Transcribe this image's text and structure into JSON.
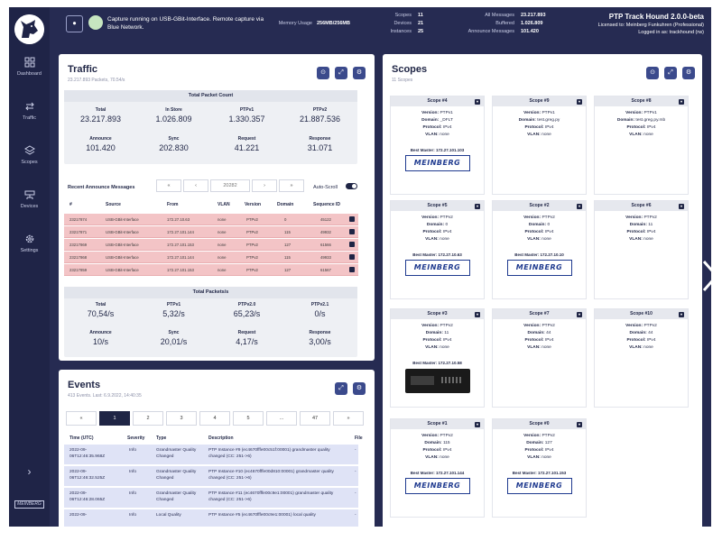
{
  "topbar": {
    "capture_button_icon": "record-icon",
    "capture_text": "Capture running on USB-GBit-Interface. Remote capture via Blue Network.",
    "memory_label": "Memory Usage",
    "memory_value": "256MB/256MB",
    "scopes_label": "Scopes",
    "scopes_value": "11",
    "devices_label": "Devices",
    "devices_value": "21",
    "instances_label": "Instances",
    "instances_value": "25",
    "all_messages_label": "All Messages",
    "all_messages_value": "23.217.893",
    "buffered_label": "Buffered",
    "buffered_value": "1.026.809",
    "announce_label": "Announce Messages",
    "announce_value": "101.420",
    "product_name": "PTP Track Hound 2.0.0-beta",
    "license": "Licensed to: Meinberg Funkuhren (Professional)",
    "login": "Logged in as: trackhound (rw)"
  },
  "sidebar": {
    "items": [
      {
        "label": "Dashboard",
        "icon": "dashboard-icon"
      },
      {
        "label": "Traffic",
        "icon": "traffic-icon"
      },
      {
        "label": "Scopes",
        "icon": "layers-icon"
      },
      {
        "label": "Devices",
        "icon": "devices-icon"
      },
      {
        "label": "Settings",
        "icon": "gear-icon"
      }
    ],
    "collapse": "›",
    "brand": "MEINBERG"
  },
  "traffic": {
    "title": "Traffic",
    "subtitle": "23.217.893 Packets, 70.54/s",
    "total_count": {
      "header": "Total Packet Count",
      "row1": [
        {
          "label": "Total",
          "value": "23.217.893"
        },
        {
          "label": "In Store",
          "value": "1.026.809"
        },
        {
          "label": "PTPv1",
          "value": "1.330.357"
        },
        {
          "label": "PTPv2",
          "value": "21.887.536"
        }
      ],
      "row2": [
        {
          "label": "Announce",
          "value": "101.420"
        },
        {
          "label": "Sync",
          "value": "202.830"
        },
        {
          "label": "Request",
          "value": "41.221"
        },
        {
          "label": "Response",
          "value": "31.071"
        }
      ]
    },
    "recent": {
      "label": "Recent Announce Messages",
      "pager_first": "«",
      "pager_prev": "‹",
      "pager_value": "20282",
      "pager_next": "›",
      "pager_last": "»",
      "autoscroll_label": "Auto-Scroll",
      "columns": [
        "#",
        "Source",
        "From",
        "VLAN",
        "Version",
        "Domain",
        "Sequence ID"
      ],
      "rows": [
        [
          "23217874",
          "USB-GBit-Interface",
          "172.27.10.63",
          "none",
          "PTPv2",
          "0",
          "45122"
        ],
        [
          "23217871",
          "USB-GBit-Interface",
          "172.27.101.144",
          "none",
          "PTPv2",
          "115",
          "49932"
        ],
        [
          "23217869",
          "USB-GBit-Interface",
          "172.27.101.153",
          "none",
          "PTPv2",
          "127",
          "61566"
        ],
        [
          "23217868",
          "USB-GBit-Interface",
          "172.27.101.144",
          "none",
          "PTPv2",
          "115",
          "49933"
        ],
        [
          "23217859",
          "USB-GBit-Interface",
          "172.27.101.153",
          "none",
          "PTPv2",
          "127",
          "61567"
        ]
      ]
    },
    "rate": {
      "header": "Total Packets/s",
      "row1": [
        {
          "label": "Total",
          "value": "70,54/s"
        },
        {
          "label": "PTPv1",
          "value": "5,32/s"
        },
        {
          "label": "PTPv2.0",
          "value": "65,23/s"
        },
        {
          "label": "PTPv2.1",
          "value": "0/s"
        }
      ],
      "row2": [
        {
          "label": "Announce",
          "value": "10/s"
        },
        {
          "label": "Sync",
          "value": "20,01/s"
        },
        {
          "label": "Request",
          "value": "4,17/s"
        },
        {
          "label": "Response",
          "value": "3,00/s"
        }
      ]
    }
  },
  "events": {
    "title": "Events",
    "subtitle": "413 Events. Last: 6.9.2022, 14:40:35",
    "pages": [
      "«",
      "1",
      "2",
      "3",
      "4",
      "5",
      "...",
      "47",
      "»"
    ],
    "active_page_index": 1,
    "columns": [
      "Time (UTC)",
      "Severity",
      "Type",
      "Description",
      "File"
    ],
    "rows": [
      {
        "time": "2022-09-06T12:46:35.968Z",
        "severity": "Info",
        "type": "Grandmaster Quality Changed",
        "desc": "PTP Instance #9 (ec4670fffe00c51f:00001) grandmaster quality changed (CC: 251->6)",
        "file": "-"
      },
      {
        "time": "2022-09-06T12:46:32.525Z",
        "severity": "Info",
        "type": "Grandmaster Quality Changed",
        "desc": "PTP Instance #10 (ec4670fffe00d810:00001) grandmaster quality changed (CC: 251->6)",
        "file": "-"
      },
      {
        "time": "2022-09-06T12:46:28.065Z",
        "severity": "Info",
        "type": "Grandmaster Quality Changed",
        "desc": "PTP Instance #11 (ec4670fffe00c9e1:00001) grandmaster quality changed (CC: 251->6)",
        "file": "-"
      },
      {
        "time": "2022-09-",
        "severity": "Info",
        "type": "Local Quality",
        "desc": "PTP Instance #5 (ec4670fffe00c9e1:00001) local quality",
        "file": "-"
      }
    ]
  },
  "scopes": {
    "title": "Scopes",
    "subtitle": "11 Scopes",
    "labels": {
      "version": "Version:",
      "domain": "Domain:",
      "protocol": "Protocol:",
      "vlan": "VLAN:",
      "best_master": "Best Master:"
    },
    "cards": [
      {
        "name": "Scope #4",
        "version": "PTPv1",
        "domain": "_DFLT",
        "protocol": "IPv4",
        "vlan": "none",
        "best_master": "172.27.101.103",
        "image": "MEINBERG"
      },
      {
        "name": "Scope #9",
        "version": "PTPv1",
        "domain": "test.greg.py",
        "protocol": "IPv4",
        "vlan": "none",
        "best_master": "",
        "image": ""
      },
      {
        "name": "Scope #8",
        "version": "PTPv1",
        "domain": "test.greg.py.mb",
        "protocol": "IPv4",
        "vlan": "none",
        "best_master": "",
        "image": ""
      },
      {
        "name": "Scope #5",
        "version": "PTPv2",
        "domain": "0",
        "protocol": "IPv4",
        "vlan": "none",
        "best_master": "172.27.10.63",
        "image": "MEINBERG"
      },
      {
        "name": "Scope #2",
        "version": "PTPv2",
        "domain": "0",
        "protocol": "IPv4",
        "vlan": "none",
        "best_master": "172.27.10.10",
        "image": "MEINBERG"
      },
      {
        "name": "Scope #6",
        "version": "PTPv2",
        "domain": "11",
        "protocol": "IPv4",
        "vlan": "none",
        "best_master": "",
        "image": ""
      },
      {
        "name": "Scope #3",
        "version": "PTPv2",
        "domain": "11",
        "protocol": "IPv4",
        "vlan": "none",
        "best_master": "172.27.10.58",
        "image": "device"
      },
      {
        "name": "Scope #7",
        "version": "PTPv2",
        "domain": "44",
        "protocol": "IPv4",
        "vlan": "none",
        "best_master": "",
        "image": ""
      },
      {
        "name": "Scope #10",
        "version": "PTPv2",
        "domain": "44",
        "protocol": "IPv4",
        "vlan": "none",
        "best_master": "",
        "image": ""
      },
      {
        "name": "Scope #1",
        "version": "PTPv2",
        "domain": "115",
        "protocol": "IPv4",
        "vlan": "none",
        "best_master": "172.27.101.144",
        "image": "MEINBERG"
      },
      {
        "name": "Scope #0",
        "version": "PTPv2",
        "domain": "127",
        "protocol": "IPv4",
        "vlan": "none",
        "best_master": "172.27.101.153",
        "image": "MEINBERG"
      }
    ]
  },
  "colors": {
    "frame": "#262b52",
    "sidebar": "#1f2447",
    "accent": "#3b4a8c",
    "row_alert": "#f3c4c6",
    "row_event": "#dfe3f6"
  }
}
